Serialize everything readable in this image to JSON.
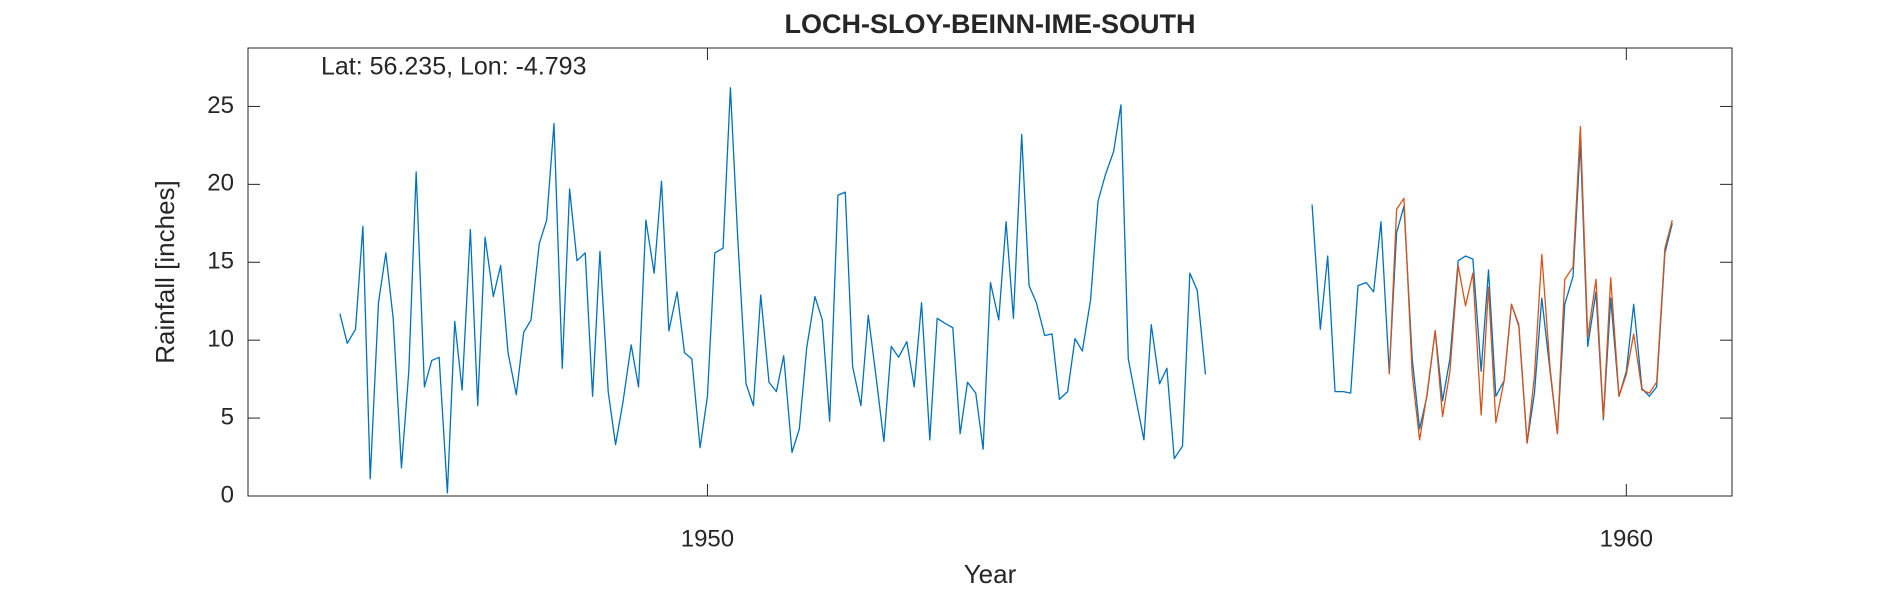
{
  "chart_data": {
    "type": "line",
    "title": "LOCH-SLOY-BEINN-IME-SOUTH",
    "annotation": "Lat: 56.235, Lon: -4.793",
    "xlabel": "Year",
    "ylabel": "Rainfall [inches]",
    "xlim": [
      1945,
      1961.15
    ],
    "ylim": [
      0,
      28.75
    ],
    "xticks": [
      1950,
      1960
    ],
    "yticks": [
      0,
      5,
      10,
      15,
      20,
      25
    ],
    "x": [
      1946.0,
      1946.08,
      1946.17,
      1946.25,
      1946.33,
      1946.42,
      1946.5,
      1946.58,
      1946.67,
      1946.75,
      1946.83,
      1946.92,
      1947.0,
      1947.08,
      1947.17,
      1947.25,
      1947.33,
      1947.42,
      1947.5,
      1947.58,
      1947.67,
      1947.75,
      1947.83,
      1947.92,
      1948.0,
      1948.08,
      1948.17,
      1948.25,
      1948.33,
      1948.42,
      1948.5,
      1948.58,
      1948.67,
      1948.75,
      1948.83,
      1948.92,
      1949.0,
      1949.08,
      1949.17,
      1949.25,
      1949.33,
      1949.42,
      1949.5,
      1949.58,
      1949.67,
      1949.75,
      1949.83,
      1949.92,
      1950.0,
      1950.08,
      1950.17,
      1950.25,
      1950.33,
      1950.42,
      1950.5,
      1950.58,
      1950.67,
      1950.75,
      1950.83,
      1950.92,
      1951.0,
      1951.08,
      1951.17,
      1951.25,
      1951.33,
      1951.42,
      1951.5,
      1951.58,
      1951.67,
      1951.75,
      1951.83,
      1951.92,
      1952.0,
      1952.08,
      1952.17,
      1952.25,
      1952.33,
      1952.42,
      1952.5,
      1952.58,
      1952.67,
      1952.75,
      1952.83,
      1952.92,
      1953.0,
      1953.08,
      1953.17,
      1953.25,
      1953.33,
      1953.42,
      1953.5,
      1953.58,
      1953.67,
      1953.75,
      1953.83,
      1953.92,
      1954.0,
      1954.08,
      1954.17,
      1954.25,
      1954.33,
      1954.42,
      1954.5,
      1954.58,
      1954.67,
      1954.75,
      1954.83,
      1954.92,
      1955.0,
      1955.08,
      1955.17,
      1955.25,
      1955.33,
      1955.42,
      1955.5,
      1955.58,
      1955.67,
      1955.75,
      1955.83,
      1955.92,
      1956.0,
      1956.08,
      1956.17,
      1956.25,
      1956.33,
      1956.42,
      1956.5,
      1956.58,
      1956.67,
      1956.75,
      1956.83,
      1956.92,
      1957.0,
      1957.08,
      1957.17,
      1957.25,
      1957.33,
      1957.42,
      1957.5,
      1957.58,
      1957.67,
      1957.75,
      1957.83,
      1957.92,
      1958.0,
      1958.08,
      1958.17,
      1958.25,
      1958.33,
      1958.42,
      1958.5,
      1958.58,
      1958.67,
      1958.75,
      1958.83,
      1958.92,
      1959.0,
      1959.08,
      1959.17,
      1959.25,
      1959.33,
      1959.42,
      1959.5,
      1959.58,
      1959.67,
      1959.75,
      1959.83,
      1959.92,
      1960.0,
      1960.08,
      1960.17,
      1960.25,
      1960.33,
      1960.42,
      1960.5
    ],
    "series": [
      {
        "color": "#0072BD",
        "values": [
          11.7,
          9.8,
          10.7,
          17.3,
          1.1,
          12.4,
          15.6,
          11.4,
          1.8,
          8.0,
          20.8,
          7.0,
          8.7,
          8.9,
          0.2,
          11.2,
          6.8,
          17.1,
          5.8,
          16.6,
          12.8,
          14.8,
          9.2,
          6.5,
          10.5,
          11.3,
          16.2,
          17.7,
          23.9,
          8.2,
          19.7,
          15.1,
          15.6,
          6.4,
          15.7,
          6.7,
          3.3,
          6.0,
          9.7,
          7.0,
          17.7,
          14.3,
          20.2,
          10.6,
          13.1,
          9.2,
          8.8,
          3.1,
          6.4,
          15.6,
          15.9,
          26.2,
          16.5,
          7.2,
          5.8,
          12.9,
          7.3,
          6.7,
          9.0,
          2.8,
          4.3,
          9.5,
          12.8,
          11.3,
          4.8,
          19.3,
          19.5,
          8.3,
          5.8,
          11.6,
          7.9,
          3.5,
          9.6,
          8.9,
          9.9,
          7.0,
          12.4,
          3.6,
          11.4,
          11.1,
          10.8,
          4.0,
          7.3,
          6.6,
          3.0,
          13.7,
          11.3,
          17.6,
          11.4,
          23.2,
          13.5,
          12.4,
          10.3,
          10.4,
          6.2,
          6.7,
          10.1,
          9.3,
          12.6,
          18.9,
          20.6,
          22.1,
          25.1,
          8.8,
          6.0,
          3.6,
          11.0,
          7.2,
          8.2,
          2.4,
          3.2,
          14.3,
          13.2,
          7.8,
          null,
          null,
          null,
          null,
          null,
          null,
          null,
          null,
          null,
          null,
          null,
          null,
          null,
          18.7,
          10.7,
          15.4,
          6.7,
          6.7,
          6.6,
          13.5,
          13.7,
          13.1,
          17.6,
          7.9,
          16.9,
          18.6,
          8.8,
          4.3,
          6.4,
          10.6,
          6.1,
          8.8,
          15.1,
          15.4,
          15.2,
          8.0,
          14.5,
          6.4,
          7.4,
          12.3,
          10.9,
          3.4,
          6.6,
          12.7,
          8.0,
          4.0,
          12.3,
          14.1,
          22.7,
          9.6,
          13.1,
          4.9,
          12.7,
          6.4,
          8.0,
          12.3,
          6.9,
          6.4,
          7.0,
          15.6,
          17.5
        ]
      },
      {
        "color": "#D95319",
        "values": [
          null,
          null,
          null,
          null,
          null,
          null,
          null,
          null,
          null,
          null,
          null,
          null,
          null,
          null,
          null,
          null,
          null,
          null,
          null,
          null,
          null,
          null,
          null,
          null,
          null,
          null,
          null,
          null,
          null,
          null,
          null,
          null,
          null,
          null,
          null,
          null,
          null,
          null,
          null,
          null,
          null,
          null,
          null,
          null,
          null,
          null,
          null,
          null,
          null,
          null,
          null,
          null,
          null,
          null,
          null,
          null,
          null,
          null,
          null,
          null,
          null,
          null,
          null,
          null,
          null,
          null,
          null,
          null,
          null,
          null,
          null,
          null,
          null,
          null,
          null,
          null,
          null,
          null,
          null,
          null,
          null,
          null,
          null,
          null,
          null,
          null,
          null,
          null,
          null,
          null,
          null,
          null,
          null,
          null,
          null,
          null,
          null,
          null,
          null,
          null,
          null,
          null,
          null,
          null,
          null,
          null,
          null,
          null,
          null,
          null,
          null,
          null,
          null,
          null,
          null,
          null,
          null,
          null,
          null,
          null,
          null,
          null,
          null,
          null,
          null,
          null,
          null,
          null,
          null,
          null,
          null,
          null,
          null,
          null,
          null,
          null,
          null,
          7.8,
          18.4,
          19.1,
          7.8,
          3.6,
          6.5,
          10.6,
          5.1,
          8.0,
          14.8,
          12.2,
          14.3,
          5.2,
          13.4,
          4.7,
          7.4,
          12.3,
          11.0,
          3.4,
          7.7,
          15.5,
          8.2,
          4.0,
          13.9,
          14.7,
          23.7,
          10.2,
          13.9,
          5.0,
          14.0,
          6.4,
          7.8,
          10.4,
          6.8,
          6.6,
          7.3,
          15.9,
          17.7
        ]
      }
    ]
  }
}
